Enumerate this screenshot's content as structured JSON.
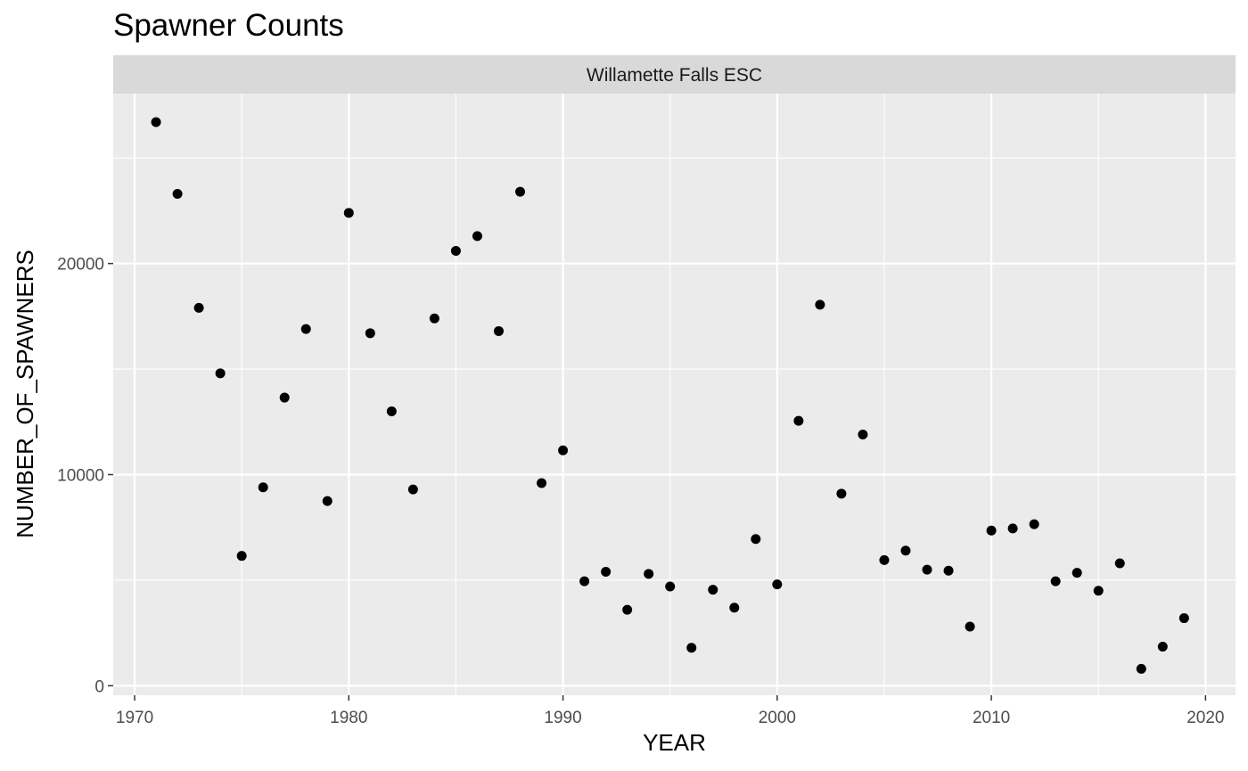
{
  "chart_data": {
    "type": "scatter",
    "title": "Spawner Counts",
    "facet_label": "Willamette Falls ESC",
    "xlabel": "YEAR",
    "ylabel": "NUMBER_OF_SPAWNERS",
    "xlim": [
      1969,
      2021.4
    ],
    "ylim": [
      -450,
      28050
    ],
    "x_ticks": [
      1970,
      1980,
      1990,
      2000,
      2010,
      2020
    ],
    "x_tick_labels": [
      "1970",
      "1980",
      "1990",
      "2000",
      "2010",
      "2020"
    ],
    "y_ticks": [
      0,
      10000,
      20000
    ],
    "y_tick_labels": [
      "0",
      "10000",
      "20000"
    ],
    "grid": true,
    "panel_background": "#ebebeb",
    "strip_background": "#d9d9d9",
    "point_color": "#000000",
    "series": [
      {
        "x": [
          1971,
          1972,
          1973,
          1974,
          1975,
          1976,
          1977,
          1978,
          1979,
          1980,
          1981,
          1982,
          1983,
          1984,
          1985,
          1986,
          1987,
          1988,
          1989,
          1990,
          1991,
          1992,
          1993,
          1994,
          1995,
          1996,
          1997,
          1998,
          1999,
          2000,
          2001,
          2002,
          2003,
          2004,
          2005,
          2006,
          2007,
          2008,
          2009,
          2010,
          2011,
          2012,
          2013,
          2014,
          2015,
          2016,
          2017,
          2018,
          2019
        ],
        "y": [
          26700,
          23300,
          17900,
          14800,
          6150,
          9400,
          13650,
          16900,
          8750,
          22400,
          16700,
          13000,
          9300,
          17400,
          20600,
          21300,
          16800,
          23400,
          9600,
          11150,
          4950,
          5400,
          3600,
          5300,
          4700,
          1800,
          4550,
          3700,
          6950,
          4800,
          12550,
          18050,
          9100,
          11900,
          5950,
          6400,
          5500,
          5450,
          2800,
          7350,
          7450,
          7650,
          4950,
          5350,
          4500,
          5800,
          800,
          1850,
          3200
        ]
      }
    ]
  }
}
